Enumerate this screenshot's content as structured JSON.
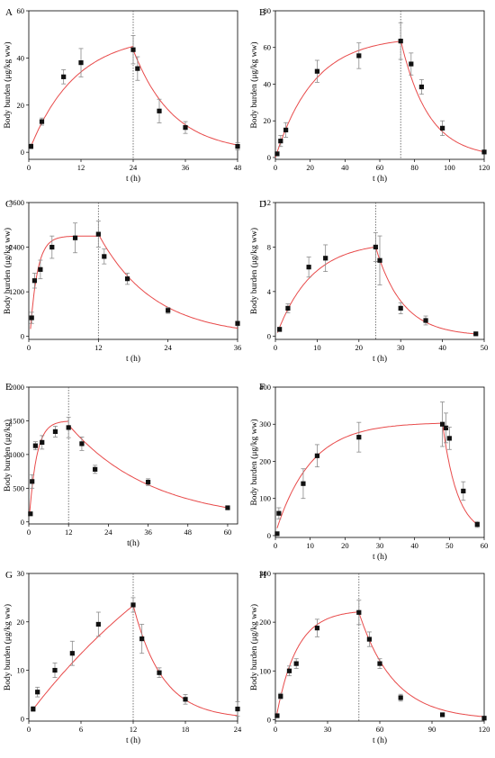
{
  "chart_data": [
    {
      "panel": "A",
      "type": "scatter",
      "xlabel": "t (h)",
      "ylabel": "Body burden (μg/kg ww)",
      "xlim": [
        0,
        48
      ],
      "ylim": [
        -3,
        60
      ],
      "xticks": [
        0,
        12,
        24,
        36,
        48
      ],
      "yticks": [
        0,
        20,
        40,
        60
      ],
      "vline": 24,
      "points": [
        {
          "x": 0.5,
          "y": 2.5,
          "err": 1
        },
        {
          "x": 3,
          "y": 13,
          "err": 1.5
        },
        {
          "x": 8,
          "y": 32,
          "err": 3
        },
        {
          "x": 12,
          "y": 38,
          "err": 6
        },
        {
          "x": 24,
          "y": 43.5,
          "err": 6
        },
        {
          "x": 25,
          "y": 35.5,
          "err": 5
        },
        {
          "x": 30,
          "y": 17.5,
          "err": 5
        },
        {
          "x": 36,
          "y": 10.5,
          "err": 2.5
        },
        {
          "x": 48,
          "y": 2.5,
          "err": 1.5
        }
      ],
      "fit_uptake": {
        "from": 0.5,
        "to": 24,
        "c0": 2.5,
        "cmax": 50,
        "k": 0.095
      },
      "fit_depuration": {
        "from": 24,
        "to": 48,
        "c0": 43.5,
        "k": 0.11
      }
    },
    {
      "panel": "B",
      "type": "scatter",
      "xlabel": "t (h)",
      "ylabel": "Body burden (μg/kg ww)",
      "xlim": [
        0,
        120
      ],
      "ylim": [
        -1,
        80
      ],
      "xticks": [
        0,
        20,
        40,
        60,
        80,
        100,
        120
      ],
      "yticks": [
        0,
        20,
        40,
        60,
        80
      ],
      "vline": 72,
      "points": [
        {
          "x": 1,
          "y": 2,
          "err": 1
        },
        {
          "x": 3,
          "y": 9,
          "err": 3
        },
        {
          "x": 6,
          "y": 15,
          "err": 4
        },
        {
          "x": 24,
          "y": 47,
          "err": 6
        },
        {
          "x": 48,
          "y": 55.5,
          "err": 7
        },
        {
          "x": 72,
          "y": 63.5,
          "err": 10
        },
        {
          "x": 78,
          "y": 51,
          "err": 6
        },
        {
          "x": 84,
          "y": 38.5,
          "err": 4
        },
        {
          "x": 96,
          "y": 16,
          "err": 4
        },
        {
          "x": 120,
          "y": 3,
          "err": 1
        }
      ],
      "fit_uptake": {
        "from": 0,
        "to": 72,
        "c0": 0,
        "cmax": 66,
        "k": 0.045
      },
      "fit_depuration": {
        "from": 72,
        "to": 120,
        "c0": 64,
        "k": 0.063
      }
    },
    {
      "panel": "C",
      "type": "scatter",
      "xlabel": "t (h)",
      "ylabel": "Body burden (μg/kg ww)",
      "xlim": [
        0,
        36
      ],
      "ylim": [
        -80,
        3600
      ],
      "xticks": [
        0,
        12,
        24,
        36
      ],
      "yticks": [
        0,
        1200,
        2400,
        3600
      ],
      "vline": 12,
      "points": [
        {
          "x": 0.5,
          "y": 500,
          "err": 150
        },
        {
          "x": 1,
          "y": 1500,
          "err": 200
        },
        {
          "x": 2,
          "y": 1800,
          "err": 250
        },
        {
          "x": 4,
          "y": 2400,
          "err": 300
        },
        {
          "x": 8,
          "y": 2650,
          "err": 400
        },
        {
          "x": 12,
          "y": 2750,
          "err": 350
        },
        {
          "x": 13,
          "y": 2150,
          "err": 200
        },
        {
          "x": 17,
          "y": 1550,
          "err": 150
        },
        {
          "x": 24,
          "y": 700,
          "err": 80
        },
        {
          "x": 36,
          "y": 350,
          "err": 60
        }
      ],
      "fit_uptake": {
        "from": 0.3,
        "to": 12,
        "c0": 200,
        "cmax": 2700,
        "k": 0.8
      },
      "fit_depuration": {
        "from": 12,
        "to": 36,
        "c0": 2750,
        "k": 0.105
      }
    },
    {
      "panel": "D",
      "type": "scatter",
      "xlabel": "t (h)",
      "ylabel": "Body burden (μg/kg ww)",
      "xlim": [
        0,
        50
      ],
      "ylim": [
        -0.3,
        12
      ],
      "xticks": [
        0,
        10,
        20,
        30,
        40,
        50
      ],
      "yticks": [
        0,
        4,
        8,
        12
      ],
      "vline": 24,
      "points": [
        {
          "x": 1,
          "y": 0.6,
          "err": 0.2
        },
        {
          "x": 3,
          "y": 2.5,
          "err": 0.4
        },
        {
          "x": 8,
          "y": 6.2,
          "err": 0.9
        },
        {
          "x": 12,
          "y": 7,
          "err": 1.2
        },
        {
          "x": 24,
          "y": 8,
          "err": 1.3
        },
        {
          "x": 25,
          "y": 6.8,
          "err": 2.2
        },
        {
          "x": 30,
          "y": 2.5,
          "err": 0.5
        },
        {
          "x": 36,
          "y": 1.4,
          "err": 0.4
        },
        {
          "x": 48,
          "y": 0.2,
          "err": 0.05
        }
      ],
      "fit_uptake": {
        "from": 0.5,
        "to": 24,
        "c0": 0.3,
        "cmax": 8.5,
        "k": 0.12
      },
      "fit_depuration": {
        "from": 24,
        "to": 48,
        "c0": 8,
        "k": 0.155
      }
    },
    {
      "panel": "E",
      "type": "scatter",
      "xlabel": "t(h)",
      "ylabel": "Body burden (μg/kg)",
      "xlim": [
        0,
        63
      ],
      "ylim": [
        -30,
        2000
      ],
      "xticks": [
        0,
        12,
        24,
        36,
        48,
        60
      ],
      "yticks": [
        0,
        500,
        1000,
        1500,
        2000
      ],
      "vline": 12,
      "points": [
        {
          "x": 0.5,
          "y": 120,
          "err": 20
        },
        {
          "x": 1,
          "y": 600,
          "err": 100
        },
        {
          "x": 2,
          "y": 1130,
          "err": 60
        },
        {
          "x": 4,
          "y": 1180,
          "err": 100
        },
        {
          "x": 8,
          "y": 1340,
          "err": 80
        },
        {
          "x": 12,
          "y": 1400,
          "err": 150
        },
        {
          "x": 16,
          "y": 1160,
          "err": 100
        },
        {
          "x": 20,
          "y": 780,
          "err": 60
        },
        {
          "x": 36,
          "y": 590,
          "err": 50
        },
        {
          "x": 60,
          "y": 210,
          "err": 20
        }
      ],
      "fit_uptake": {
        "from": 0.3,
        "to": 12,
        "c0": 150,
        "cmax": 1500,
        "k": 0.45
      },
      "fit_depuration": {
        "from": 12,
        "to": 60,
        "c0": 1440,
        "k": 0.04
      }
    },
    {
      "panel": "F",
      "type": "scatter",
      "xlabel": "t (h)",
      "ylabel": "Body burden (μg/kg ww)",
      "xlim": [
        0,
        60
      ],
      "ylim": [
        -5,
        400
      ],
      "xticks": [
        0,
        10,
        20,
        30,
        40,
        50,
        60
      ],
      "yticks": [
        0,
        100,
        200,
        300,
        400
      ],
      "points": [
        {
          "x": 0.5,
          "y": 5,
          "err": 3
        },
        {
          "x": 1,
          "y": 60,
          "err": 15
        },
        {
          "x": 8,
          "y": 140,
          "err": 40
        },
        {
          "x": 12,
          "y": 215,
          "err": 30
        },
        {
          "x": 24,
          "y": 265,
          "err": 40
        },
        {
          "x": 48,
          "y": 300,
          "err": 60
        },
        {
          "x": 49,
          "y": 290,
          "err": 40
        },
        {
          "x": 50,
          "y": 262,
          "err": 30
        },
        {
          "x": 54,
          "y": 120,
          "err": 25
        },
        {
          "x": 58,
          "y": 30,
          "err": 8
        }
      ],
      "fit_uptake": {
        "from": 0.5,
        "to": 48,
        "c0": 20,
        "cmax": 305,
        "k": 0.1
      },
      "fit_depuration": {
        "from": 48,
        "to": 58,
        "c0": 303,
        "k": 0.23
      }
    },
    {
      "panel": "G",
      "type": "scatter",
      "xlabel": "t (h)",
      "ylabel": "Body burden (μg/kg ww)",
      "xlim": [
        0,
        24
      ],
      "ylim": [
        -0.5,
        30
      ],
      "xticks": [
        0,
        6,
        12,
        18,
        24
      ],
      "yticks": [
        0,
        10,
        20,
        30
      ],
      "vline": 12,
      "points": [
        {
          "x": 0.5,
          "y": 2,
          "err": 0.5
        },
        {
          "x": 1,
          "y": 5.5,
          "err": 1
        },
        {
          "x": 3,
          "y": 10,
          "err": 1.5
        },
        {
          "x": 5,
          "y": 13.5,
          "err": 2.5
        },
        {
          "x": 8,
          "y": 19.5,
          "err": 2.5
        },
        {
          "x": 12,
          "y": 23.5,
          "err": 1.5
        },
        {
          "x": 13,
          "y": 16.5,
          "err": 3
        },
        {
          "x": 15,
          "y": 9.5,
          "err": 1
        },
        {
          "x": 18,
          "y": 4,
          "err": 1
        },
        {
          "x": 24,
          "y": 2,
          "err": 1.5
        }
      ],
      "fit_uptake": {
        "from": 0.3,
        "to": 12,
        "c0": 1.5,
        "cmax": 60,
        "k": 0.04
      },
      "fit_depuration": {
        "from": 12,
        "to": 24,
        "c0": 23.5,
        "k": 0.3
      }
    },
    {
      "panel": "H",
      "type": "scatter",
      "xlabel": "t (h)",
      "ylabel": "Body burden (μg/kg ww)",
      "xlim": [
        0,
        120
      ],
      "ylim": [
        -3,
        300
      ],
      "xticks": [
        0,
        30,
        60,
        90,
        120
      ],
      "yticks": [
        0,
        100,
        200,
        300
      ],
      "vline": 48,
      "points": [
        {
          "x": 1,
          "y": 8,
          "err": 3
        },
        {
          "x": 3,
          "y": 48,
          "err": 6
        },
        {
          "x": 8,
          "y": 100,
          "err": 10
        },
        {
          "x": 12,
          "y": 115,
          "err": 10
        },
        {
          "x": 24,
          "y": 188,
          "err": 18
        },
        {
          "x": 48,
          "y": 220,
          "err": 25
        },
        {
          "x": 54,
          "y": 165,
          "err": 15
        },
        {
          "x": 60,
          "y": 115,
          "err": 10
        },
        {
          "x": 72,
          "y": 45,
          "err": 7
        },
        {
          "x": 96,
          "y": 10,
          "err": 3
        },
        {
          "x": 120,
          "y": 3,
          "err": 1
        }
      ],
      "fit_uptake": {
        "from": 0.5,
        "to": 48,
        "c0": 5,
        "cmax": 225,
        "k": 0.085
      },
      "fit_depuration": {
        "from": 48,
        "to": 120,
        "c0": 220,
        "k": 0.05
      }
    }
  ]
}
